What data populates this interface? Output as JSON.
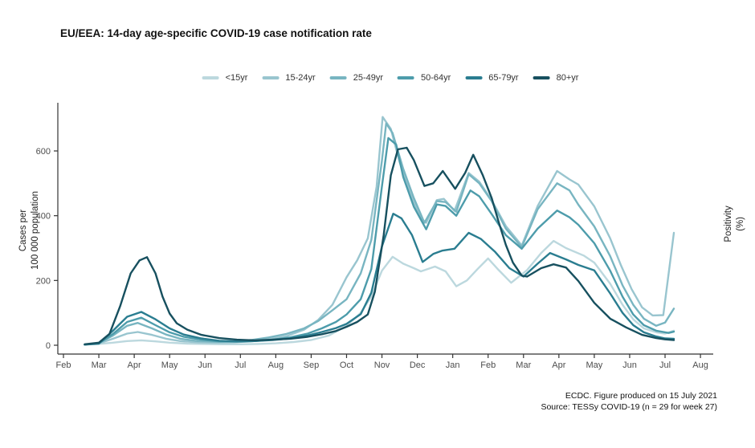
{
  "title": "EU/EEA: 14-day age-specific COVID-19 case notification rate",
  "footer": {
    "line1": "ECDC. Figure produced on 15 July 2021",
    "line2": "Source: TESSy COVID-19 (n = 29 for week 27)"
  },
  "chart_data": {
    "type": "line",
    "title": "EU/EEA: 14-day age-specific COVID-19 case notification rate",
    "ylabel_lines": [
      "Cases per",
      "100 000 population"
    ],
    "y2label_lines": [
      "Positivity",
      "(%)"
    ],
    "y_ticks": [
      0,
      200,
      400,
      600
    ],
    "ylim": [
      0,
      710
    ],
    "grid": false,
    "legend_position": "top",
    "x_tick_labels": [
      "Feb",
      "Mar",
      "Apr",
      "May",
      "Jun",
      "Jul",
      "Aug",
      "Sep",
      "Oct",
      "Nov",
      "Dec",
      "Jan",
      "Feb",
      "Mar",
      "Apr",
      "May",
      "Jun",
      "Jul",
      "Aug"
    ],
    "x_unit": "month index, 0 = Feb 2020 through 18 = Aug 2021",
    "series": [
      {
        "name": "<15yr",
        "color": "#bcd8de",
        "points": [
          [
            0.6,
            2
          ],
          [
            1.0,
            4
          ],
          [
            1.4,
            8
          ],
          [
            1.8,
            13
          ],
          [
            2.2,
            15
          ],
          [
            2.6,
            12
          ],
          [
            3.0,
            8
          ],
          [
            3.5,
            5
          ],
          [
            4.0,
            4
          ],
          [
            4.5,
            3
          ],
          [
            5.0,
            3
          ],
          [
            5.5,
            4
          ],
          [
            6.0,
            6
          ],
          [
            6.5,
            10
          ],
          [
            7.0,
            16
          ],
          [
            7.5,
            30
          ],
          [
            8.0,
            60
          ],
          [
            8.4,
            100
          ],
          [
            8.7,
            150
          ],
          [
            9.0,
            230
          ],
          [
            9.3,
            273
          ],
          [
            9.6,
            252
          ],
          [
            9.9,
            238
          ],
          [
            10.1,
            228
          ],
          [
            10.5,
            243
          ],
          [
            10.8,
            228
          ],
          [
            11.1,
            182
          ],
          [
            11.4,
            200
          ],
          [
            11.7,
            235
          ],
          [
            12.0,
            268
          ],
          [
            12.3,
            232
          ],
          [
            12.65,
            193
          ],
          [
            13.1,
            232
          ],
          [
            13.5,
            285
          ],
          [
            13.85,
            322
          ],
          [
            14.2,
            300
          ],
          [
            14.7,
            277
          ],
          [
            15.0,
            255
          ],
          [
            15.45,
            190
          ],
          [
            15.8,
            125
          ],
          [
            16.1,
            80
          ],
          [
            16.4,
            52
          ],
          [
            16.75,
            40
          ],
          [
            17.0,
            36
          ],
          [
            17.25,
            45
          ]
        ]
      },
      {
        "name": "15-24yr",
        "color": "#99c5cf",
        "points": [
          [
            0.6,
            2
          ],
          [
            1.0,
            6
          ],
          [
            1.4,
            20
          ],
          [
            1.8,
            36
          ],
          [
            2.1,
            41
          ],
          [
            2.5,
            32
          ],
          [
            2.9,
            20
          ],
          [
            3.3,
            13
          ],
          [
            3.8,
            9
          ],
          [
            4.3,
            8
          ],
          [
            4.8,
            9
          ],
          [
            5.3,
            12
          ],
          [
            5.8,
            18
          ],
          [
            6.3,
            28
          ],
          [
            6.8,
            48
          ],
          [
            7.2,
            78
          ],
          [
            7.6,
            125
          ],
          [
            8.0,
            210
          ],
          [
            8.3,
            262
          ],
          [
            8.6,
            330
          ],
          [
            8.85,
            490
          ],
          [
            9.02,
            705
          ],
          [
            9.25,
            668
          ],
          [
            9.5,
            565
          ],
          [
            9.8,
            468
          ],
          [
            10.1,
            392
          ],
          [
            10.25,
            378
          ],
          [
            10.55,
            448
          ],
          [
            10.75,
            452
          ],
          [
            11.05,
            415
          ],
          [
            11.45,
            532
          ],
          [
            11.75,
            505
          ],
          [
            12.1,
            448
          ],
          [
            12.5,
            368
          ],
          [
            12.95,
            308
          ],
          [
            13.4,
            430
          ],
          [
            13.95,
            538
          ],
          [
            14.3,
            512
          ],
          [
            14.55,
            496
          ],
          [
            15.0,
            429
          ],
          [
            15.45,
            330
          ],
          [
            15.75,
            248
          ],
          [
            16.05,
            174
          ],
          [
            16.35,
            117
          ],
          [
            16.65,
            92
          ],
          [
            16.95,
            93
          ],
          [
            17.25,
            347
          ]
        ]
      },
      {
        "name": "25-49yr",
        "color": "#78b5c1",
        "points": [
          [
            0.6,
            2
          ],
          [
            1.0,
            7
          ],
          [
            1.4,
            30
          ],
          [
            1.8,
            60
          ],
          [
            2.1,
            69
          ],
          [
            2.5,
            52
          ],
          [
            2.9,
            33
          ],
          [
            3.3,
            20
          ],
          [
            3.8,
            13
          ],
          [
            4.3,
            11
          ],
          [
            4.8,
            12
          ],
          [
            5.3,
            16
          ],
          [
            5.8,
            24
          ],
          [
            6.3,
            35
          ],
          [
            6.8,
            52
          ],
          [
            7.2,
            75
          ],
          [
            7.6,
            108
          ],
          [
            8.0,
            142
          ],
          [
            8.4,
            222
          ],
          [
            8.7,
            325
          ],
          [
            9.0,
            570
          ],
          [
            9.12,
            685
          ],
          [
            9.3,
            655
          ],
          [
            9.6,
            545
          ],
          [
            9.9,
            455
          ],
          [
            10.2,
            378
          ],
          [
            10.55,
            445
          ],
          [
            10.8,
            442
          ],
          [
            11.1,
            412
          ],
          [
            11.45,
            528
          ],
          [
            11.75,
            500
          ],
          [
            12.1,
            445
          ],
          [
            12.5,
            360
          ],
          [
            12.95,
            303
          ],
          [
            13.4,
            420
          ],
          [
            13.95,
            500
          ],
          [
            14.3,
            478
          ],
          [
            14.55,
            434
          ],
          [
            15.0,
            367
          ],
          [
            15.45,
            275
          ],
          [
            15.8,
            185
          ],
          [
            16.1,
            125
          ],
          [
            16.4,
            82
          ],
          [
            16.75,
            60
          ],
          [
            17.0,
            70
          ],
          [
            17.25,
            113
          ]
        ]
      },
      {
        "name": "50-64yr",
        "color": "#4d9cab",
        "points": [
          [
            0.6,
            2
          ],
          [
            1.0,
            6
          ],
          [
            1.4,
            35
          ],
          [
            1.8,
            72
          ],
          [
            2.2,
            85
          ],
          [
            2.6,
            62
          ],
          [
            3.0,
            40
          ],
          [
            3.4,
            26
          ],
          [
            3.9,
            17
          ],
          [
            4.4,
            12
          ],
          [
            4.9,
            11
          ],
          [
            5.4,
            13
          ],
          [
            5.9,
            17
          ],
          [
            6.4,
            24
          ],
          [
            6.9,
            36
          ],
          [
            7.3,
            52
          ],
          [
            7.7,
            72
          ],
          [
            8.0,
            95
          ],
          [
            8.4,
            142
          ],
          [
            8.7,
            235
          ],
          [
            9.0,
            490
          ],
          [
            9.18,
            640
          ],
          [
            9.4,
            620
          ],
          [
            9.6,
            520
          ],
          [
            9.9,
            428
          ],
          [
            10.25,
            358
          ],
          [
            10.55,
            435
          ],
          [
            10.8,
            430
          ],
          [
            11.1,
            400
          ],
          [
            11.5,
            478
          ],
          [
            11.75,
            460
          ],
          [
            12.1,
            405
          ],
          [
            12.5,
            340
          ],
          [
            12.95,
            298
          ],
          [
            13.4,
            360
          ],
          [
            13.95,
            416
          ],
          [
            14.3,
            395
          ],
          [
            14.55,
            372
          ],
          [
            15.0,
            315
          ],
          [
            15.45,
            230
          ],
          [
            15.8,
            150
          ],
          [
            16.1,
            95
          ],
          [
            16.4,
            62
          ],
          [
            16.75,
            45
          ],
          [
            17.1,
            38
          ],
          [
            17.25,
            42
          ]
        ]
      },
      {
        "name": "65-79yr",
        "color": "#2a7d90",
        "points": [
          [
            0.6,
            2
          ],
          [
            1.0,
            5
          ],
          [
            1.4,
            45
          ],
          [
            1.8,
            88
          ],
          [
            2.2,
            103
          ],
          [
            2.6,
            80
          ],
          [
            3.0,
            52
          ],
          [
            3.4,
            33
          ],
          [
            3.9,
            21
          ],
          [
            4.4,
            14
          ],
          [
            4.9,
            12
          ],
          [
            5.4,
            13
          ],
          [
            5.9,
            16
          ],
          [
            6.4,
            21
          ],
          [
            6.9,
            30
          ],
          [
            7.3,
            41
          ],
          [
            7.7,
            53
          ],
          [
            8.0,
            66
          ],
          [
            8.4,
            96
          ],
          [
            8.7,
            162
          ],
          [
            9.0,
            305
          ],
          [
            9.32,
            406
          ],
          [
            9.55,
            392
          ],
          [
            9.85,
            340
          ],
          [
            10.15,
            257
          ],
          [
            10.45,
            282
          ],
          [
            10.7,
            292
          ],
          [
            11.05,
            298
          ],
          [
            11.45,
            347
          ],
          [
            11.8,
            328
          ],
          [
            12.2,
            288
          ],
          [
            12.6,
            238
          ],
          [
            13.0,
            212
          ],
          [
            13.4,
            252
          ],
          [
            13.75,
            285
          ],
          [
            14.2,
            265
          ],
          [
            14.55,
            248
          ],
          [
            15.0,
            231
          ],
          [
            15.45,
            160
          ],
          [
            15.8,
            100
          ],
          [
            16.1,
            62
          ],
          [
            16.4,
            40
          ],
          [
            16.75,
            27
          ],
          [
            17.0,
            21
          ],
          [
            17.25,
            20
          ]
        ]
      },
      {
        "name": "80+yr",
        "color": "#17505f",
        "points": [
          [
            0.6,
            3
          ],
          [
            1.0,
            8
          ],
          [
            1.3,
            35
          ],
          [
            1.6,
            120
          ],
          [
            1.9,
            222
          ],
          [
            2.15,
            262
          ],
          [
            2.36,
            272
          ],
          [
            2.6,
            222
          ],
          [
            2.8,
            150
          ],
          [
            3.0,
            98
          ],
          [
            3.2,
            68
          ],
          [
            3.5,
            48
          ],
          [
            3.9,
            32
          ],
          [
            4.4,
            22
          ],
          [
            4.9,
            17
          ],
          [
            5.4,
            15
          ],
          [
            5.9,
            17
          ],
          [
            6.4,
            20
          ],
          [
            6.9,
            26
          ],
          [
            7.3,
            34
          ],
          [
            7.7,
            44
          ],
          [
            8.0,
            57
          ],
          [
            8.3,
            72
          ],
          [
            8.6,
            95
          ],
          [
            8.8,
            165
          ],
          [
            9.05,
            340
          ],
          [
            9.25,
            525
          ],
          [
            9.45,
            605
          ],
          [
            9.7,
            610
          ],
          [
            9.9,
            572
          ],
          [
            10.2,
            492
          ],
          [
            10.45,
            500
          ],
          [
            10.72,
            538
          ],
          [
            11.07,
            483
          ],
          [
            11.35,
            532
          ],
          [
            11.58,
            588
          ],
          [
            11.85,
            525
          ],
          [
            12.1,
            455
          ],
          [
            12.3,
            380
          ],
          [
            12.5,
            310
          ],
          [
            12.7,
            255
          ],
          [
            12.95,
            215
          ],
          [
            13.1,
            212
          ],
          [
            13.5,
            238
          ],
          [
            13.85,
            250
          ],
          [
            14.2,
            240
          ],
          [
            14.55,
            198
          ],
          [
            15.0,
            131
          ],
          [
            15.45,
            82
          ],
          [
            15.9,
            55
          ],
          [
            16.35,
            32
          ],
          [
            16.75,
            22
          ],
          [
            17.0,
            18
          ],
          [
            17.25,
            16
          ]
        ]
      }
    ]
  }
}
